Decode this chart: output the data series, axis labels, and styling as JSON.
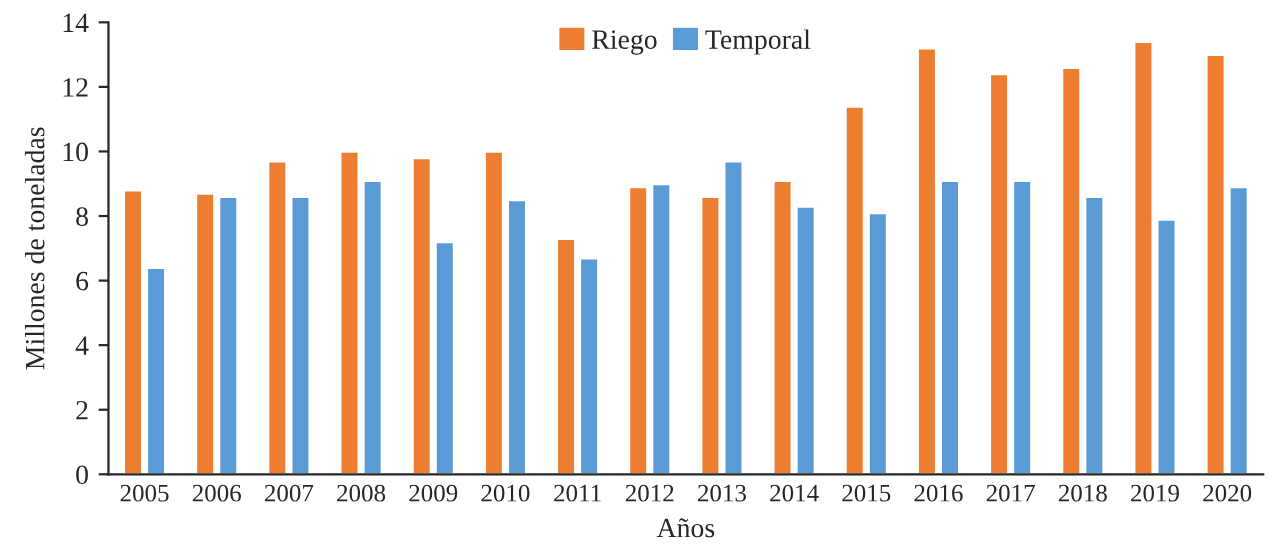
{
  "chart_data": {
    "type": "bar",
    "xlabel": "Años",
    "ylabel": "Millones de toneladas",
    "categories": [
      "2005",
      "2006",
      "2007",
      "2008",
      "2009",
      "2010",
      "2011",
      "2012",
      "2013",
      "2014",
      "2015",
      "2016",
      "2017",
      "2018",
      "2019",
      "2020"
    ],
    "series": [
      {
        "name": "Riego",
        "color": "#ed7d31",
        "values": [
          8.8,
          8.7,
          9.7,
          10.0,
          9.8,
          10.0,
          7.3,
          8.9,
          8.6,
          9.1,
          11.4,
          13.2,
          12.4,
          12.6,
          13.4,
          13.0
        ]
      },
      {
        "name": "Temporal",
        "color": "#5b9bd5",
        "values": [
          6.4,
          8.6,
          8.6,
          9.1,
          7.2,
          8.5,
          6.7,
          9.0,
          9.7,
          8.3,
          8.1,
          9.1,
          9.1,
          8.6,
          7.9,
          8.9
        ]
      }
    ],
    "ylim": [
      0,
      14
    ],
    "yticks": [
      0,
      2,
      4,
      6,
      8,
      10,
      12,
      14
    ],
    "grid": false,
    "legend": "top"
  }
}
